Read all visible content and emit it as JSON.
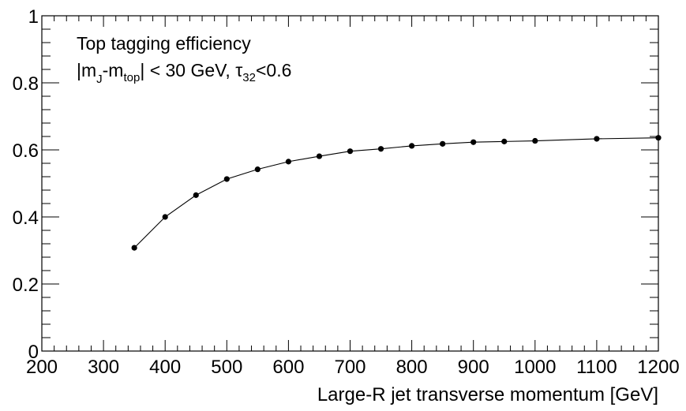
{
  "chart_data": {
    "type": "line",
    "title": "",
    "xlabel": "Large-R jet transverse momentum [GeV]",
    "ylabel": "",
    "xlim": [
      200,
      1200
    ],
    "ylim": [
      0,
      1
    ],
    "x_ticks": [
      200,
      300,
      400,
      500,
      600,
      700,
      800,
      900,
      1000,
      1100,
      1200
    ],
    "y_ticks": [
      0,
      0.2,
      0.4,
      0.6,
      0.8,
      1
    ],
    "y_tick_labels": [
      "0",
      "0.2",
      "0.4",
      "0.6",
      "0.8",
      "1"
    ],
    "grid": false,
    "legend": "none",
    "annotations": {
      "line1": "Top tagging efficiency",
      "line2": {
        "bar_open": "|m",
        "sub_J": "J",
        "dash_m": "-m",
        "sub_top": "top",
        "bar_close": "| < 30 GeV, ",
        "tau": "τ",
        "sub_32": "32",
        "tail": "<0.6"
      }
    },
    "series": [
      {
        "x": [
          350,
          400,
          450,
          500,
          550,
          600,
          650,
          700,
          750,
          800,
          850,
          900,
          950,
          1000,
          1100,
          1200
        ],
        "y": [
          0.308,
          0.4,
          0.465,
          0.513,
          0.542,
          0.565,
          0.581,
          0.596,
          0.603,
          0.612,
          0.618,
          0.623,
          0.625,
          0.627,
          0.633,
          0.636
        ],
        "color": "#000000"
      }
    ]
  }
}
